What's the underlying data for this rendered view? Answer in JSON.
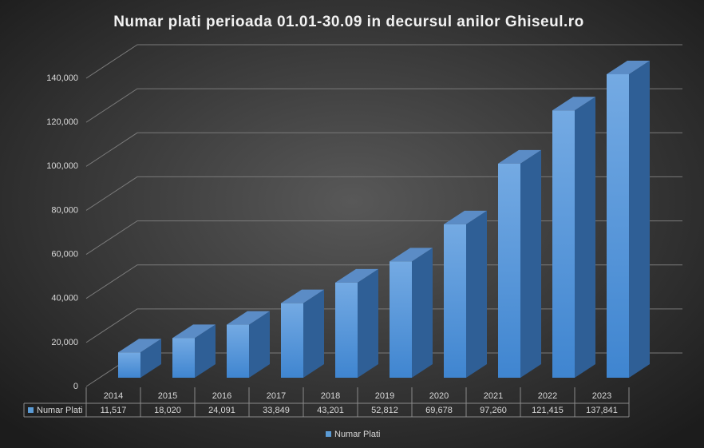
{
  "chart_data": {
    "type": "bar3d",
    "title": "Numar plati perioada 01.01-30.09 in decursul anilor Ghiseul.ro",
    "categories": [
      "2014",
      "2015",
      "2016",
      "2017",
      "2018",
      "2019",
      "2020",
      "2021",
      "2022",
      "2023"
    ],
    "series": [
      {
        "name": "Numar Plati",
        "color": "#5b9bd5",
        "values": [
          11517,
          18020,
          24091,
          33849,
          43201,
          52812,
          69678,
          97260,
          121415,
          137841
        ],
        "value_labels": [
          "11,517",
          "18,020",
          "24,091",
          "33,849",
          "43,201",
          "52,812",
          "69,678",
          "97,260",
          "121,415",
          "137,841"
        ]
      }
    ],
    "ylim": [
      0,
      140000
    ],
    "yticks": [
      0,
      {
        "value": 20000,
        "label": "20,000"
      },
      {
        "value": 40000,
        "label": "40,000"
      },
      {
        "value": 60000,
        "label": "60,000"
      },
      {
        "value": 80000,
        "label": "80,000"
      },
      {
        "value": 100000,
        "label": "100,000"
      },
      {
        "value": 120000,
        "label": "120,000"
      },
      {
        "value": 140000,
        "label": "140,000"
      }
    ],
    "grid": true
  }
}
